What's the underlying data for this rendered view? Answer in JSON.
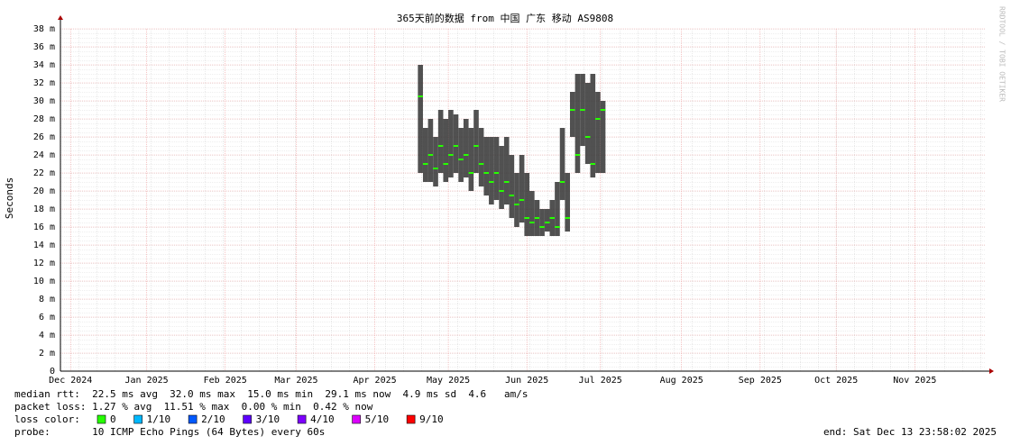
{
  "chart_data": {
    "type": "smoke",
    "title": "365天前的数据 from 中国 广东 移动 AS9808",
    "y_label": "Seconds",
    "watermark": "RRDTOOL / TOBI OETIKER",
    "xlim": [
      0,
      365
    ],
    "xticks": [
      {
        "value": 4,
        "label": "Dec 2024"
      },
      {
        "value": 34,
        "label": "Jan 2025"
      },
      {
        "value": 65,
        "label": "Feb 2025"
      },
      {
        "value": 93,
        "label": "Mar 2025"
      },
      {
        "value": 124,
        "label": "Apr 2025"
      },
      {
        "value": 153,
        "label": "May 2025"
      },
      {
        "value": 184,
        "label": "Jun 2025"
      },
      {
        "value": 213,
        "label": "Jul 2025"
      },
      {
        "value": 245,
        "label": "Aug 2025"
      },
      {
        "value": 276,
        "label": "Sep 2025"
      },
      {
        "value": 306,
        "label": "Oct 2025"
      },
      {
        "value": 337,
        "label": "Nov 2025"
      }
    ],
    "ylim": [
      0,
      38
    ],
    "yticks": [
      0,
      {
        "value": 2,
        "label": "2 m"
      },
      {
        "value": 4,
        "label": "4 m"
      },
      {
        "value": 6,
        "label": "6 m"
      },
      {
        "value": 8,
        "label": "8 m"
      },
      {
        "value": 10,
        "label": "10 m"
      },
      {
        "value": 12,
        "label": "12 m"
      },
      {
        "value": 14,
        "label": "14 m"
      },
      {
        "value": 16,
        "label": "16 m"
      },
      {
        "value": 18,
        "label": "18 m"
      },
      {
        "value": 20,
        "label": "20 m"
      },
      {
        "value": 22,
        "label": "22 m"
      },
      {
        "value": 24,
        "label": "24 m"
      },
      {
        "value": 26,
        "label": "26 m"
      },
      {
        "value": 28,
        "label": "28 m"
      },
      {
        "value": 30,
        "label": "30 m"
      },
      {
        "value": 32,
        "label": "32 m"
      },
      {
        "value": 34,
        "label": "34 m"
      },
      {
        "value": 36,
        "label": "36 m"
      },
      {
        "value": 38,
        "label": "38 m"
      }
    ],
    "grid": true,
    "x": [
      142,
      144,
      146,
      148,
      150,
      152,
      154,
      156,
      158,
      160,
      162,
      164,
      166,
      168,
      170,
      172,
      174,
      176,
      178,
      180,
      182,
      184,
      186,
      188,
      190,
      192,
      194,
      196,
      198,
      200,
      202,
      204,
      206,
      208,
      210,
      212,
      214
    ],
    "values": [
      30.5,
      23,
      24,
      22.5,
      25,
      23,
      24,
      25,
      23.5,
      24,
      22,
      25,
      23,
      22,
      21,
      22,
      20,
      21,
      19.5,
      18.5,
      19,
      17,
      16.5,
      17,
      16,
      16.5,
      17,
      16,
      21,
      17,
      29,
      24,
      29,
      26,
      23,
      28,
      29
    ],
    "lows": [
      22,
      21,
      21,
      20.5,
      22,
      21,
      21.5,
      22,
      21,
      21.5,
      20,
      22,
      20.5,
      19.5,
      18.5,
      19,
      18,
      18.5,
      17,
      16,
      16.5,
      15,
      15,
      15,
      15,
      15.5,
      15,
      15,
      19,
      15.5,
      26,
      22,
      25,
      23,
      21.5,
      22,
      22
    ],
    "highs": [
      34,
      27,
      28,
      26,
      29,
      28,
      29,
      28.5,
      27,
      28,
      27,
      29,
      27,
      26,
      26,
      26,
      25,
      26,
      24,
      22,
      24,
      22,
      20,
      19,
      18,
      18,
      19,
      21,
      27,
      22,
      31,
      33,
      33,
      32,
      33,
      31,
      30
    ],
    "color": "#333333",
    "median_color": "#26ff00",
    "loss_label": "loss color:",
    "loss_colors": [
      {
        "label": "0",
        "color": "#26ff00"
      },
      {
        "label": "1/10",
        "color": "#00b8ff"
      },
      {
        "label": "2/10",
        "color": "#0059ff"
      },
      {
        "label": "3/10",
        "color": "#5e00ff"
      },
      {
        "label": "4/10",
        "color": "#7e00ff"
      },
      {
        "label": "5/10",
        "color": "#dd00ff"
      },
      {
        "label": "9/10",
        "color": "#ff0000"
      }
    ],
    "stats": [
      "median rtt:  22.5 ms avg  32.0 ms max  15.0 ms min  29.1 ms now  4.9 ms sd  4.6   am/s",
      "packet loss: 1.27 % avg  11.51 % max  0.00 % min  0.42 % now",
      "probe:       10 ICMP Echo Pings (64 Bytes) every 60s"
    ],
    "end": "end: Sat Dec 13 23:58:02 2025"
  }
}
